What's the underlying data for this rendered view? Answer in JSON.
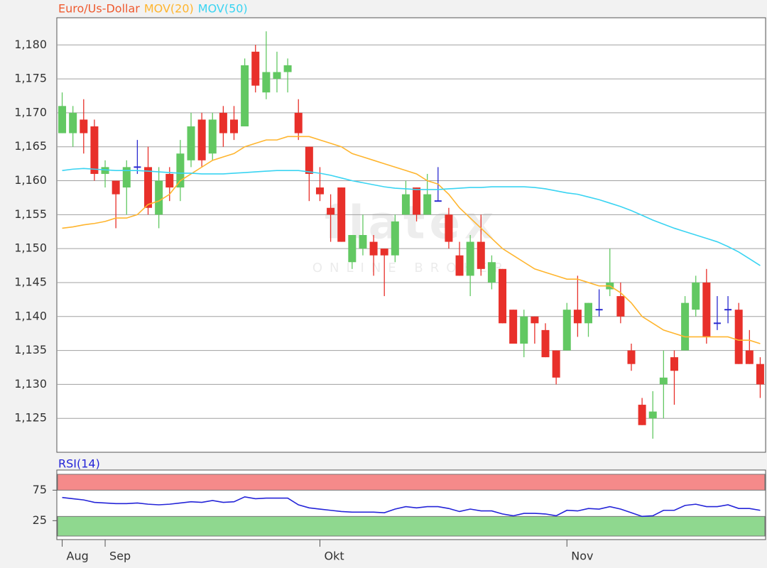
{
  "chart_data": [
    {
      "type": "candlestick",
      "watermark": {
        "logo": "flatex",
        "tagline": "ONLINE BROKER"
      },
      "categories": [
        "Aug",
        null,
        null,
        null,
        "Sep",
        null,
        null,
        null,
        null,
        null,
        null,
        null,
        null,
        null,
        null,
        null,
        null,
        null,
        null,
        null,
        null,
        null,
        null,
        null,
        "Okt",
        null,
        null,
        null,
        null,
        null,
        null,
        null,
        null,
        null,
        null,
        null,
        null,
        null,
        null,
        null,
        null,
        null,
        null,
        null,
        null,
        null,
        null,
        "Nov",
        null,
        null,
        null,
        null,
        null,
        null,
        null,
        null,
        null,
        null,
        null,
        null,
        null,
        null,
        null,
        null,
        null,
        null
      ],
      "series": [
        {
          "name": "Euro/Us-Dollar",
          "color": "#ef5a2f",
          "up_color": "#62c862",
          "down_color": "#e8302a",
          "flat_color": "#2a2ad0",
          "open": [
            1.167,
            1.167,
            1.169,
            1.168,
            1.161,
            1.16,
            1.159,
            1.162,
            1.162,
            1.155,
            1.161,
            1.159,
            1.163,
            1.169,
            1.164,
            1.17,
            1.169,
            1.168,
            1.179,
            1.173,
            1.175,
            1.176,
            1.17,
            1.165,
            1.159,
            1.156,
            1.159,
            1.148,
            1.15,
            1.151,
            1.15,
            1.149,
            1.155,
            1.159,
            1.155,
            1.157,
            1.155,
            1.149,
            1.146,
            1.151,
            1.145,
            1.147,
            1.141,
            1.136,
            1.14,
            1.138,
            1.135,
            1.135,
            1.141,
            1.139,
            1.141,
            1.144,
            1.143,
            1.135,
            1.127,
            1.125,
            1.13,
            1.134,
            1.135,
            1.141,
            1.145,
            1.139,
            1.141,
            1.141,
            1.135,
            1.133
          ],
          "high": [
            1.173,
            1.171,
            1.172,
            1.169,
            1.163,
            1.16,
            1.163,
            1.166,
            1.165,
            1.162,
            1.162,
            1.166,
            1.17,
            1.17,
            1.17,
            1.171,
            1.171,
            1.178,
            1.18,
            1.182,
            1.179,
            1.178,
            1.172,
            1.165,
            1.162,
            1.158,
            1.159,
            1.152,
            1.155,
            1.152,
            1.15,
            1.155,
            1.16,
            1.159,
            1.161,
            1.162,
            1.156,
            1.151,
            1.152,
            1.155,
            1.149,
            1.147,
            1.141,
            1.141,
            1.14,
            1.139,
            1.135,
            1.142,
            1.146,
            1.142,
            1.144,
            1.15,
            1.145,
            1.136,
            1.128,
            1.129,
            1.135,
            1.135,
            1.143,
            1.146,
            1.147,
            1.143,
            1.143,
            1.142,
            1.138,
            1.134
          ],
          "low": [
            1.167,
            1.165,
            1.164,
            1.16,
            1.159,
            1.153,
            1.155,
            1.161,
            1.155,
            1.153,
            1.157,
            1.157,
            1.162,
            1.162,
            1.163,
            1.165,
            1.166,
            1.168,
            1.173,
            1.172,
            1.173,
            1.173,
            1.166,
            1.157,
            1.157,
            1.151,
            1.151,
            1.147,
            1.149,
            1.146,
            1.143,
            1.148,
            1.155,
            1.154,
            1.155,
            1.157,
            1.15,
            1.146,
            1.143,
            1.146,
            1.144,
            1.139,
            1.136,
            1.134,
            1.136,
            1.134,
            1.13,
            1.135,
            1.137,
            1.137,
            1.14,
            1.143,
            1.139,
            1.132,
            1.124,
            1.122,
            1.125,
            1.127,
            1.135,
            1.14,
            1.136,
            1.138,
            1.139,
            1.133,
            1.133,
            1.128
          ],
          "close": [
            1.171,
            1.17,
            1.167,
            1.161,
            1.162,
            1.158,
            1.162,
            1.162,
            1.156,
            1.16,
            1.159,
            1.164,
            1.168,
            1.163,
            1.169,
            1.167,
            1.167,
            1.177,
            1.174,
            1.176,
            1.176,
            1.177,
            1.167,
            1.161,
            1.158,
            1.155,
            1.151,
            1.152,
            1.152,
            1.149,
            1.149,
            1.154,
            1.158,
            1.155,
            1.158,
            1.157,
            1.151,
            1.146,
            1.151,
            1.147,
            1.148,
            1.139,
            1.136,
            1.14,
            1.139,
            1.134,
            1.131,
            1.141,
            1.139,
            1.142,
            1.141,
            1.145,
            1.14,
            1.133,
            1.124,
            1.126,
            1.131,
            1.132,
            1.142,
            1.145,
            1.137,
            1.139,
            1.141,
            1.133,
            1.133,
            1.13
          ]
        },
        {
          "name": "MOV(20)",
          "color": "#ffb52e",
          "values": [
            1.153,
            1.1532,
            1.1535,
            1.1537,
            1.154,
            1.1545,
            1.1545,
            1.155,
            1.1565,
            1.157,
            1.158,
            1.16,
            1.161,
            1.162,
            1.163,
            1.1635,
            1.164,
            1.165,
            1.1655,
            1.166,
            1.166,
            1.1665,
            1.1665,
            1.1665,
            1.166,
            1.1655,
            1.165,
            1.164,
            1.1635,
            1.163,
            1.1625,
            1.162,
            1.1615,
            1.161,
            1.16,
            1.1595,
            1.158,
            1.156,
            1.1545,
            1.153,
            1.1515,
            1.15,
            1.149,
            1.148,
            1.147,
            1.1465,
            1.146,
            1.1455,
            1.1455,
            1.145,
            1.1445,
            1.1445,
            1.1435,
            1.142,
            1.14,
            1.139,
            1.138,
            1.1375,
            1.137,
            1.137,
            1.137,
            1.137,
            1.137,
            1.1365,
            1.1365,
            1.136
          ]
        },
        {
          "name": "MOV(50)",
          "color": "#3ad4f2",
          "values": [
            1.1615,
            1.1617,
            1.1618,
            1.1617,
            1.1616,
            1.1615,
            1.1615,
            1.1615,
            1.1614,
            1.1613,
            1.1612,
            1.1611,
            1.1611,
            1.161,
            1.161,
            1.161,
            1.1611,
            1.1612,
            1.1613,
            1.1614,
            1.1615,
            1.1615,
            1.1615,
            1.1613,
            1.1611,
            1.1608,
            1.1604,
            1.16,
            1.1597,
            1.1594,
            1.1591,
            1.1589,
            1.1588,
            1.1587,
            1.1587,
            1.1587,
            1.1588,
            1.1589,
            1.159,
            1.159,
            1.1591,
            1.1591,
            1.1591,
            1.1591,
            1.159,
            1.1588,
            1.1585,
            1.1582,
            1.158,
            1.1576,
            1.1572,
            1.1567,
            1.1562,
            1.1556,
            1.1549,
            1.1542,
            1.1536,
            1.153,
            1.1525,
            1.152,
            1.1515,
            1.151,
            1.1503,
            1.1495,
            1.1485,
            1.1475
          ]
        }
      ],
      "ylim": [
        1.12,
        1.184
      ],
      "yticks": [
        {
          "value": 1.125,
          "label": "1,125"
        },
        {
          "value": 1.13,
          "label": "1,130"
        },
        {
          "value": 1.135,
          "label": "1,135"
        },
        {
          "value": 1.14,
          "label": "1,140"
        },
        {
          "value": 1.145,
          "label": "1,145"
        },
        {
          "value": 1.15,
          "label": "1,150"
        },
        {
          "value": 1.155,
          "label": "1,155"
        },
        {
          "value": 1.16,
          "label": "1,160"
        },
        {
          "value": 1.165,
          "label": "1,165"
        },
        {
          "value": 1.17,
          "label": "1,170"
        },
        {
          "value": 1.175,
          "label": "1,175"
        },
        {
          "value": 1.18,
          "label": "1,180"
        }
      ],
      "grid": true
    },
    {
      "type": "line",
      "series": [
        {
          "name": "RSI(14)",
          "color": "#2424d8",
          "values": [
            63,
            61,
            59,
            55,
            54,
            53,
            53,
            54,
            52,
            51,
            52,
            54,
            56,
            55,
            58,
            55,
            56,
            64,
            61,
            62,
            62,
            62,
            51,
            46,
            44,
            42,
            40,
            39,
            39,
            39,
            38,
            44,
            48,
            46,
            48,
            48,
            45,
            40,
            44,
            41,
            41,
            36,
            33,
            37,
            37,
            36,
            33,
            42,
            41,
            45,
            44,
            48,
            44,
            38,
            32,
            33,
            42,
            42,
            50,
            52,
            48,
            48,
            51,
            45,
            45,
            42
          ]
        }
      ],
      "ylim": [
        -6,
        108
      ],
      "yticks": [
        25,
        75
      ],
      "band_colors": {
        "high": "#f58a8a",
        "low": "#8fd88f"
      }
    }
  ]
}
